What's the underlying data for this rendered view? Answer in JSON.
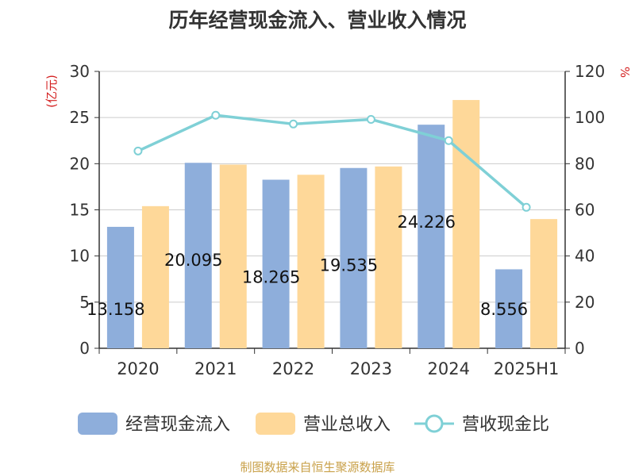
{
  "chart_data": {
    "type": "bar",
    "title": "历年经营现金流入、营业收入情况",
    "categories": [
      "2020",
      "2021",
      "2022",
      "2023",
      "2024",
      "2025H1"
    ],
    "y_left": {
      "unit_label": "(亿元)",
      "range": [
        0,
        30
      ],
      "ticks": [
        "0",
        "5",
        "10",
        "15",
        "20",
        "25",
        "30"
      ]
    },
    "y_right": {
      "unit_label": "%",
      "range": [
        0,
        120
      ],
      "ticks": [
        "0",
        "20",
        "40",
        "60",
        "80",
        "100",
        "120"
      ]
    },
    "series": [
      {
        "name": "经营现金流入",
        "kind": "bar",
        "axis": "left",
        "color": "#8eaedb",
        "values": [
          13.158,
          20.095,
          18.265,
          19.535,
          24.226,
          8.556
        ],
        "labels": [
          "13.158",
          "20.095",
          "18.265",
          "19.535",
          "24.226",
          "8.556"
        ]
      },
      {
        "name": "营业总收入",
        "kind": "bar",
        "axis": "left",
        "color": "#fed899",
        "values": [
          15.4,
          19.9,
          18.8,
          19.7,
          26.9,
          14.0
        ]
      },
      {
        "name": "营收现金比",
        "kind": "line",
        "axis": "right",
        "color": "#7fd0d6",
        "values": [
          85.5,
          101.0,
          97.2,
          99.2,
          90.0,
          61.1
        ]
      }
    ],
    "grid": true,
    "legend_position": "bottom"
  },
  "source_text": "制图数据来自恒生聚源数据库"
}
